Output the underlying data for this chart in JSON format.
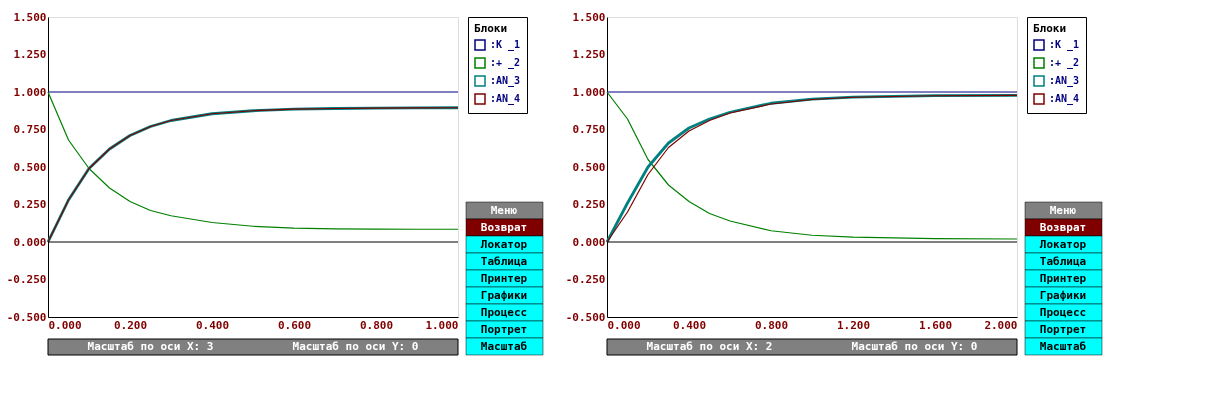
{
  "chart_data": [
    {
      "type": "line",
      "legend_title": "Блоки",
      "legend": "top right",
      "grid": false,
      "x": [
        0,
        0.05,
        0.1,
        0.15,
        0.2,
        0.25,
        0.3,
        0.4,
        0.5,
        0.6,
        0.7,
        0.8,
        0.9,
        1.0
      ],
      "series": [
        {
          "name": ":К _1",
          "color": "#000080",
          "values": [
            1,
            1,
            1,
            1,
            1,
            1,
            1,
            1,
            1,
            1,
            1,
            1,
            1,
            1
          ]
        },
        {
          "name": ":+ _2",
          "color": "#008000",
          "values": [
            1.0,
            0.68,
            0.49,
            0.36,
            0.27,
            0.21,
            0.175,
            0.13,
            0.105,
            0.093,
            0.088,
            0.086,
            0.085,
            0.085
          ]
        },
        {
          "name": ":AN_3",
          "color": "#008080",
          "values": [
            0,
            0.28,
            0.49,
            0.62,
            0.71,
            0.77,
            0.81,
            0.855,
            0.875,
            0.886,
            0.89,
            0.893,
            0.894,
            0.895
          ]
        },
        {
          "name": ":AN_4",
          "color": "#800000",
          "values": [
            0,
            0.28,
            0.49,
            0.62,
            0.71,
            0.77,
            0.81,
            0.855,
            0.875,
            0.886,
            0.89,
            0.893,
            0.894,
            0.895
          ]
        }
      ],
      "xlim": [
        0,
        1
      ],
      "xticks": [
        {
          "value": 0,
          "label": "0.000"
        },
        {
          "value": 0.2,
          "label": "0.200"
        },
        {
          "value": 0.4,
          "label": "0.400"
        },
        {
          "value": 0.6,
          "label": "0.600"
        },
        {
          "value": 0.8,
          "label": "0.800"
        },
        {
          "value": 1,
          "label": "1.000"
        }
      ],
      "ylim": [
        -0.5,
        1.5
      ],
      "yticks": [
        {
          "value": -0.5,
          "label": "-0.500"
        },
        {
          "value": -0.25,
          "label": "-0.250"
        },
        {
          "value": 0,
          "label": "0.000"
        },
        {
          "value": 0.25,
          "label": "0.250"
        },
        {
          "value": 0.5,
          "label": "0.500"
        },
        {
          "value": 0.75,
          "label": "0.750"
        },
        {
          "value": 1,
          "label": "1.000"
        },
        {
          "value": 1.25,
          "label": "1.250"
        },
        {
          "value": 1.5,
          "label": "1.500"
        }
      ],
      "ref_lines": [
        {
          "axis": "y",
          "value": 0,
          "color": "#000000"
        }
      ],
      "annotations": [
        "Меню",
        "Возврат",
        "Локатор",
        "Таблица",
        "Принтер",
        "Графики",
        "Процесс",
        "Портрет",
        "Масштаб",
        "Масштаб по оси X: 3",
        "Масштаб по оси Y: 0"
      ]
    },
    {
      "type": "line",
      "legend_title": "Блоки",
      "legend": "top right",
      "grid": false,
      "x": [
        0,
        0.1,
        0.2,
        0.3,
        0.4,
        0.5,
        0.6,
        0.8,
        1.0,
        1.2,
        1.6,
        2.0
      ],
      "series": [
        {
          "name": ":К _1",
          "color": "#000080",
          "values": [
            1,
            1,
            1,
            1,
            1,
            1,
            1,
            1,
            1,
            1,
            1,
            1
          ]
        },
        {
          "name": ":+ _2",
          "color": "#008000",
          "values": [
            1.0,
            0.82,
            0.55,
            0.38,
            0.27,
            0.19,
            0.14,
            0.075,
            0.045,
            0.032,
            0.022,
            0.02
          ]
        },
        {
          "name": ":AN_3",
          "color": "#008080",
          "values": [
            0,
            0.26,
            0.5,
            0.66,
            0.76,
            0.82,
            0.865,
            0.925,
            0.952,
            0.966,
            0.976,
            0.978
          ]
        },
        {
          "name": ":AN_4",
          "color": "#800000",
          "values": [
            0,
            0.2,
            0.45,
            0.63,
            0.74,
            0.81,
            0.86,
            0.92,
            0.95,
            0.965,
            0.975,
            0.978
          ]
        }
      ],
      "xlim": [
        0,
        2
      ],
      "xticks": [
        {
          "value": 0,
          "label": "0.000"
        },
        {
          "value": 0.4,
          "label": "0.400"
        },
        {
          "value": 0.8,
          "label": "0.800"
        },
        {
          "value": 1.2,
          "label": "1.200"
        },
        {
          "value": 1.6,
          "label": "1.600"
        },
        {
          "value": 2,
          "label": "2.000"
        }
      ],
      "ylim": [
        -0.5,
        1.5
      ],
      "yticks": [
        {
          "value": -0.5,
          "label": "-0.500"
        },
        {
          "value": -0.25,
          "label": "-0.250"
        },
        {
          "value": 0,
          "label": "0.000"
        },
        {
          "value": 0.25,
          "label": "0.250"
        },
        {
          "value": 0.5,
          "label": "0.500"
        },
        {
          "value": 0.75,
          "label": "0.750"
        },
        {
          "value": 1,
          "label": "1.000"
        },
        {
          "value": 1.25,
          "label": "1.250"
        },
        {
          "value": 1.5,
          "label": "1.500"
        }
      ],
      "ref_lines": [
        {
          "axis": "y",
          "value": 0,
          "color": "#000000"
        }
      ],
      "annotations": [
        "Меню",
        "Возврат",
        "Локатор",
        "Таблица",
        "Принтер",
        "Графики",
        "Процесс",
        "Портрет",
        "Масштаб",
        "Масштаб по оси X: 2",
        "Масштаб по оси Y: 0"
      ]
    }
  ]
}
